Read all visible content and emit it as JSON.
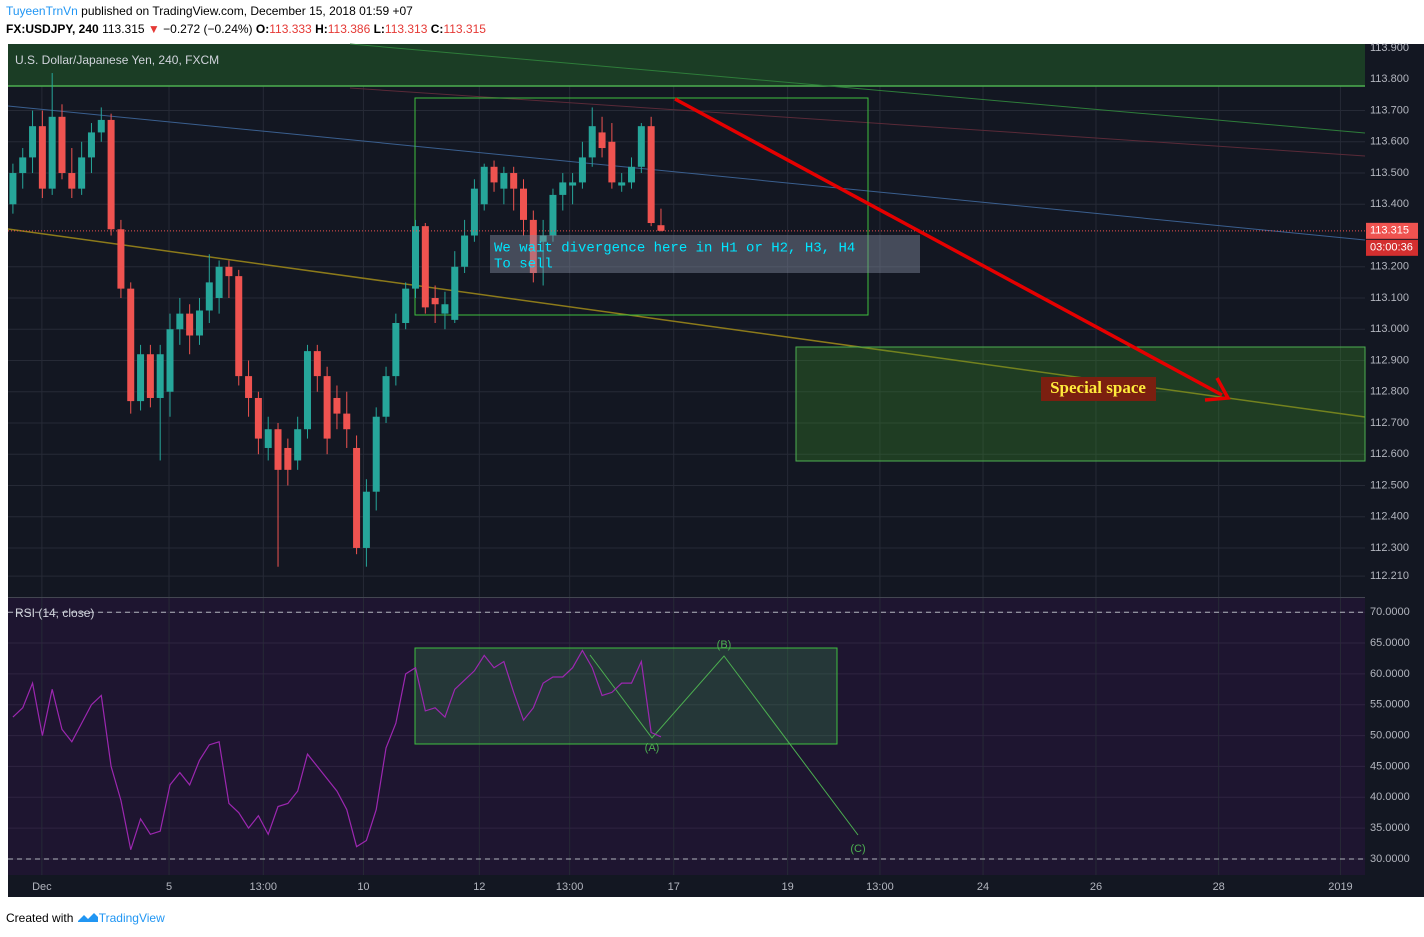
{
  "header": {
    "author": "TuyeenTrnVn",
    "published": "published on TradingView.com, December 15, 2018 01:59 +07",
    "symbol": "FX:USDJPY, 240",
    "last": "113.315",
    "arrow": "▼",
    "change": "−0.272 (−0.24%)",
    "o_label": "O:",
    "o": "113.333",
    "h_label": "H:",
    "h": "113.386",
    "l_label": "L:",
    "l": "113.313",
    "c_label": "C:",
    "c": "113.315"
  },
  "footer": {
    "created": "Created with",
    "brand": "TradingView"
  },
  "chart_data": {
    "type": "candlestick",
    "title": "U.S. Dollar/Japanese Yen, 240, FXCM",
    "xlim": [
      -0.5,
      137.7
    ],
    "ylim": [
      112.143,
      113.913
    ],
    "xticks": [
      {
        "value": 2.95,
        "label": "Dec"
      },
      {
        "value": 15.9,
        "label": "5"
      },
      {
        "value": 25.5,
        "label": "13:00"
      },
      {
        "value": 35.7,
        "label": "10"
      },
      {
        "value": 47.5,
        "label": "12"
      },
      {
        "value": 56.7,
        "label": "13:00"
      },
      {
        "value": 67.3,
        "label": "17"
      },
      {
        "value": 78.9,
        "label": "19"
      },
      {
        "value": 88.3,
        "label": "13:00"
      },
      {
        "value": 98.8,
        "label": "24"
      },
      {
        "value": 110.3,
        "label": "26"
      },
      {
        "value": 122.8,
        "label": "28"
      },
      {
        "value": 135.2,
        "label": "2019"
      }
    ],
    "yticks": [
      {
        "value": 113.9,
        "label": "113.900"
      },
      {
        "value": 113.8,
        "label": "113.800"
      },
      {
        "value": 113.7,
        "label": "113.700"
      },
      {
        "value": 113.6,
        "label": "113.600"
      },
      {
        "value": 113.5,
        "label": "113.500"
      },
      {
        "value": 113.4,
        "label": "113.400"
      },
      {
        "value": 113.2,
        "label": "113.200"
      },
      {
        "value": 113.1,
        "label": "113.100"
      },
      {
        "value": 113.0,
        "label": "113.000"
      },
      {
        "value": 112.9,
        "label": "112.900"
      },
      {
        "value": 112.8,
        "label": "112.800"
      },
      {
        "value": 112.7,
        "label": "112.700"
      },
      {
        "value": 112.6,
        "label": "112.600"
      },
      {
        "value": 112.5,
        "label": "112.500"
      },
      {
        "value": 112.4,
        "label": "112.400"
      },
      {
        "value": 112.3,
        "label": "112.300"
      },
      {
        "value": 112.21,
        "label": "112.210"
      }
    ],
    "up_color": "#26a69a",
    "down_color": "#ef5350",
    "grid": true,
    "price_line": {
      "value": 113.315,
      "label": "113.315"
    },
    "countdown": "03:00:36",
    "candles": [
      [
        113.4,
        113.53,
        113.37,
        113.5
      ],
      [
        113.5,
        113.58,
        113.45,
        113.55
      ],
      [
        113.55,
        113.7,
        113.5,
        113.65
      ],
      [
        113.65,
        113.7,
        113.42,
        113.45
      ],
      [
        113.45,
        113.82,
        113.43,
        113.68
      ],
      [
        113.68,
        113.72,
        113.48,
        113.5
      ],
      [
        113.5,
        113.58,
        113.42,
        113.45
      ],
      [
        113.45,
        113.6,
        113.43,
        113.55
      ],
      [
        113.55,
        113.66,
        113.5,
        113.63
      ],
      [
        113.63,
        113.71,
        113.6,
        113.67
      ],
      [
        113.67,
        113.69,
        113.3,
        113.32
      ],
      [
        113.32,
        113.35,
        113.1,
        113.13
      ],
      [
        113.13,
        113.15,
        112.73,
        112.77
      ],
      [
        112.77,
        112.95,
        112.74,
        112.92
      ],
      [
        112.92,
        112.95,
        112.75,
        112.78
      ],
      [
        112.78,
        112.95,
        112.58,
        112.92
      ],
      [
        112.8,
        113.05,
        112.72,
        113.0
      ],
      [
        113.0,
        113.1,
        112.95,
        113.05
      ],
      [
        113.05,
        113.08,
        112.92,
        112.98
      ],
      [
        112.98,
        113.1,
        112.95,
        113.06
      ],
      [
        113.06,
        113.24,
        113.02,
        113.15
      ],
      [
        113.1,
        113.22,
        113.05,
        113.2
      ],
      [
        113.2,
        113.22,
        113.1,
        113.17
      ],
      [
        113.17,
        113.19,
        112.82,
        112.85
      ],
      [
        112.85,
        112.9,
        112.72,
        112.78
      ],
      [
        112.78,
        112.8,
        112.6,
        112.65
      ],
      [
        112.62,
        112.72,
        112.58,
        112.68
      ],
      [
        112.68,
        112.7,
        112.24,
        112.55
      ],
      [
        112.62,
        112.65,
        112.5,
        112.55
      ],
      [
        112.58,
        112.72,
        112.55,
        112.68
      ],
      [
        112.68,
        112.95,
        112.65,
        112.93
      ],
      [
        112.93,
        112.95,
        112.8,
        112.85
      ],
      [
        112.85,
        112.88,
        112.6,
        112.65
      ],
      [
        112.78,
        112.82,
        112.68,
        112.73
      ],
      [
        112.73,
        112.8,
        112.62,
        112.68
      ],
      [
        112.62,
        112.66,
        112.28,
        112.3
      ],
      [
        112.3,
        112.52,
        112.24,
        112.48
      ],
      [
        112.48,
        112.75,
        112.42,
        112.72
      ],
      [
        112.72,
        112.88,
        112.7,
        112.85
      ],
      [
        112.85,
        113.05,
        112.82,
        113.02
      ],
      [
        113.02,
        113.15,
        113.0,
        113.13
      ],
      [
        113.13,
        113.35,
        113.1,
        113.33
      ],
      [
        113.33,
        113.34,
        113.05,
        113.07
      ],
      [
        113.1,
        113.14,
        113.02,
        113.08
      ],
      [
        113.05,
        113.12,
        113.0,
        113.08
      ],
      [
        113.03,
        113.25,
        113.02,
        113.2
      ],
      [
        113.2,
        113.35,
        113.18,
        113.3
      ],
      [
        113.3,
        113.48,
        113.28,
        113.45
      ],
      [
        113.4,
        113.53,
        113.38,
        113.52
      ],
      [
        113.52,
        113.54,
        113.44,
        113.47
      ],
      [
        113.45,
        113.52,
        113.4,
        113.5
      ],
      [
        113.5,
        113.52,
        113.38,
        113.45
      ],
      [
        113.45,
        113.48,
        113.3,
        113.35
      ],
      [
        113.35,
        113.38,
        113.15,
        113.18
      ],
      [
        113.28,
        113.35,
        113.14,
        113.3
      ],
      [
        113.3,
        113.45,
        113.28,
        113.43
      ],
      [
        113.43,
        113.5,
        113.38,
        113.47
      ],
      [
        113.46,
        113.5,
        113.4,
        113.47
      ],
      [
        113.47,
        113.6,
        113.45,
        113.55
      ],
      [
        113.55,
        113.71,
        113.52,
        113.65
      ],
      [
        113.63,
        113.68,
        113.55,
        113.58
      ],
      [
        113.6,
        113.66,
        113.45,
        113.47
      ],
      [
        113.46,
        113.5,
        113.44,
        113.47
      ],
      [
        113.47,
        113.55,
        113.45,
        113.52
      ],
      [
        113.52,
        113.66,
        113.5,
        113.65
      ],
      [
        113.65,
        113.68,
        113.33,
        113.34
      ],
      [
        113.333,
        113.386,
        113.313,
        113.315
      ]
    ],
    "rsi": {
      "title": "RSI (14, close)",
      "color": "#9c27b0",
      "ylim": [
        27.4,
        72.3
      ],
      "yticks": [
        {
          "value": 70,
          "label": "70.0000"
        },
        {
          "value": 65,
          "label": "65.0000"
        },
        {
          "value": 60,
          "label": "60.0000"
        },
        {
          "value": 55,
          "label": "55.0000"
        },
        {
          "value": 50,
          "label": "50.0000"
        },
        {
          "value": 45,
          "label": "45.0000"
        },
        {
          "value": 40,
          "label": "40.0000"
        },
        {
          "value": 35,
          "label": "35.0000"
        },
        {
          "value": 30,
          "label": "30.0000"
        }
      ],
      "bands": [
        70,
        30
      ],
      "values": [
        53,
        54.5,
        58.5,
        50,
        57.5,
        51,
        49,
        52,
        55,
        56.5,
        45,
        39.5,
        31.5,
        36.5,
        34,
        34.5,
        42,
        44,
        42,
        46,
        48.5,
        49,
        39,
        37.5,
        35,
        37,
        34,
        38.5,
        39,
        41,
        47,
        45,
        43,
        41,
        38,
        32,
        33,
        38,
        48,
        52,
        60,
        61,
        54,
        54.5,
        53,
        57.5,
        59,
        60.5,
        63,
        61,
        62,
        57,
        52.5,
        54.5,
        58.5,
        59.5,
        59.5,
        61,
        63.8,
        61,
        56.5,
        57,
        58.5,
        58.5,
        62,
        50.5,
        49.8
      ]
    },
    "annotations": {
      "note_1": "We wait divergence here in H1 or H2, H3, H4",
      "note_2": "To sell",
      "zone": "Special space",
      "wave_a": "(A)",
      "wave_b": "(B)",
      "wave_c": "(C)"
    }
  }
}
